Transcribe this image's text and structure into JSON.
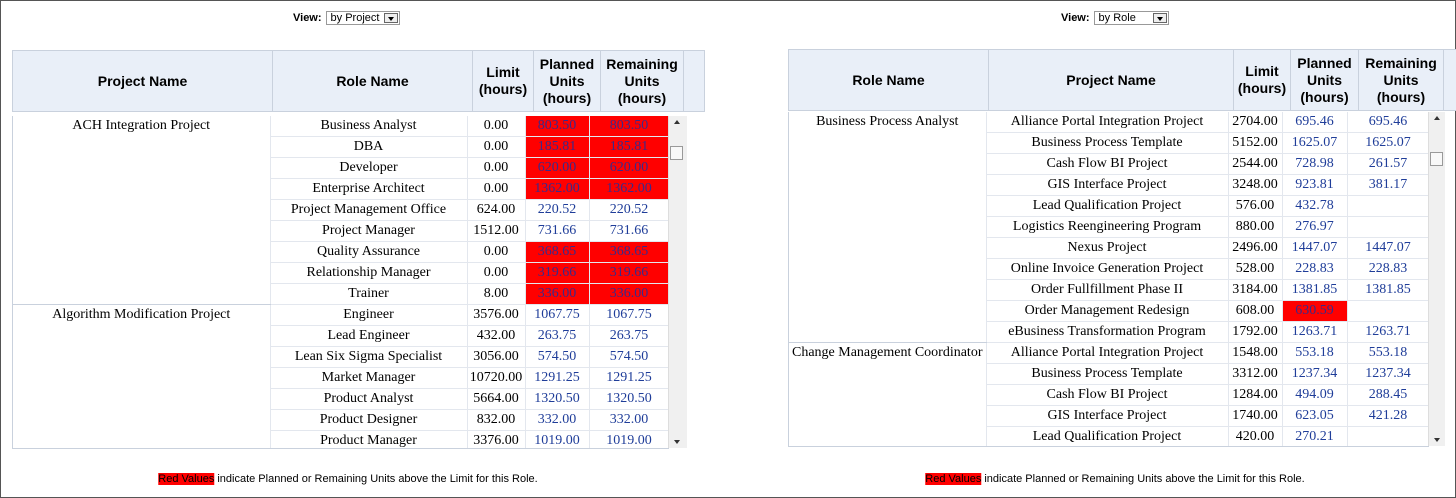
{
  "panels": [
    {
      "view_label": "View:",
      "view_option": "by Project",
      "columns": [
        "Project Name",
        "Role Name",
        "Limit (hours)",
        "Planned Units (hours)",
        "Remaining Units (hours)"
      ],
      "groups": [
        {
          "name": "ACH Integration Project",
          "rows": [
            {
              "name": "Business Analyst",
              "limit": "0.00",
              "planned": "803.50",
              "remaining": "803.50"
            },
            {
              "name": "DBA",
              "limit": "0.00",
              "planned": "185.81",
              "remaining": "185.81"
            },
            {
              "name": "Developer",
              "limit": "0.00",
              "planned": "620.00",
              "remaining": "620.00"
            },
            {
              "name": "Enterprise Architect",
              "limit": "0.00",
              "planned": "1362.00",
              "remaining": "1362.00"
            },
            {
              "name": "Project Management Office",
              "limit": "624.00",
              "planned": "220.52",
              "remaining": "220.52"
            },
            {
              "name": "Project Manager",
              "limit": "1512.00",
              "planned": "731.66",
              "remaining": "731.66"
            },
            {
              "name": "Quality Assurance",
              "limit": "0.00",
              "planned": "368.65",
              "remaining": "368.65"
            },
            {
              "name": "Relationship Manager",
              "limit": "0.00",
              "planned": "319.66",
              "remaining": "319.66"
            },
            {
              "name": "Trainer",
              "limit": "8.00",
              "planned": "336.00",
              "remaining": "336.00"
            }
          ]
        },
        {
          "name": "Algorithm Modification Project",
          "rows": [
            {
              "name": "Engineer",
              "limit": "3576.00",
              "planned": "1067.75",
              "remaining": "1067.75"
            },
            {
              "name": "Lead Engineer",
              "limit": "432.00",
              "planned": "263.75",
              "remaining": "263.75"
            },
            {
              "name": "Lean Six Sigma Specialist",
              "limit": "3056.00",
              "planned": "574.50",
              "remaining": "574.50"
            },
            {
              "name": "Market Manager",
              "limit": "10720.00",
              "planned": "1291.25",
              "remaining": "1291.25"
            },
            {
              "name": "Product Analyst",
              "limit": "5664.00",
              "planned": "1320.50",
              "remaining": "1320.50"
            },
            {
              "name": "Product Designer",
              "limit": "832.00",
              "planned": "332.00",
              "remaining": "332.00"
            },
            {
              "name": "Product Manager",
              "limit": "3376.00",
              "planned": "1019.00",
              "remaining": "1019.00"
            }
          ]
        }
      ],
      "note_highlight": "Red Values",
      "note_text": "indicate Planned or Remaining Units above the Limit for this Role."
    },
    {
      "view_label": "View:",
      "view_option": "by Role",
      "columns": [
        "Role Name",
        "Project Name",
        "Limit (hours)",
        "Planned Units (hours)",
        "Remaining Units (hours)"
      ],
      "groups": [
        {
          "name": "Business Process Analyst",
          "rows": [
            {
              "name": "Alliance Portal Integration Project",
              "limit": "2704.00",
              "planned": "695.46",
              "remaining": "695.46"
            },
            {
              "name": "Business Process Template",
              "limit": "5152.00",
              "planned": "1625.07",
              "remaining": "1625.07"
            },
            {
              "name": "Cash Flow BI Project",
              "limit": "2544.00",
              "planned": "728.98",
              "remaining": "261.57"
            },
            {
              "name": "GIS Interface Project",
              "limit": "3248.00",
              "planned": "923.81",
              "remaining": "381.17"
            },
            {
              "name": "Lead Qualification Project",
              "limit": "576.00",
              "planned": "432.78",
              "remaining": null
            },
            {
              "name": "Logistics Reengineering Program",
              "limit": "880.00",
              "planned": "276.97",
              "remaining": null
            },
            {
              "name": "Nexus Project",
              "limit": "2496.00",
              "planned": "1447.07",
              "remaining": "1447.07"
            },
            {
              "name": "Online Invoice Generation Project",
              "limit": "528.00",
              "planned": "228.83",
              "remaining": "228.83"
            },
            {
              "name": "Order Fullfillment Phase II",
              "limit": "3184.00",
              "planned": "1381.85",
              "remaining": "1381.85"
            },
            {
              "name": "Order Management Redesign",
              "limit": "608.00",
              "planned": "630.59",
              "remaining": null
            },
            {
              "name": "eBusiness Transformation Program",
              "limit": "1792.00",
              "planned": "1263.71",
              "remaining": "1263.71"
            }
          ]
        },
        {
          "name": "Change Management Coordinator",
          "rows": [
            {
              "name": "Alliance Portal Integration Project",
              "limit": "1548.00",
              "planned": "553.18",
              "remaining": "553.18"
            },
            {
              "name": "Business Process Template",
              "limit": "3312.00",
              "planned": "1237.34",
              "remaining": "1237.34"
            },
            {
              "name": "Cash Flow BI Project",
              "limit": "1284.00",
              "planned": "494.09",
              "remaining": "288.45"
            },
            {
              "name": "GIS Interface Project",
              "limit": "1740.00",
              "planned": "623.05",
              "remaining": "421.28"
            },
            {
              "name": "Lead Qualification Project",
              "limit": "420.00",
              "planned": "270.21",
              "remaining": null
            }
          ]
        }
      ],
      "note_highlight": "Red Values",
      "note_text": "indicate Planned or Remaining Units above the Limit for this Role."
    }
  ]
}
